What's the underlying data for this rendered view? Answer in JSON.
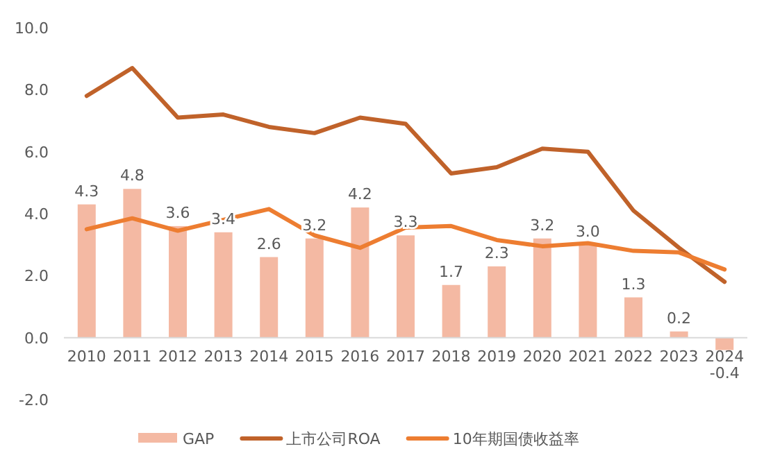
{
  "chart_data": {
    "type": "bar",
    "categories": [
      "2010",
      "2011",
      "2012",
      "2013",
      "2014",
      "2015",
      "2016",
      "2017",
      "2018",
      "2019",
      "2020",
      "2021",
      "2022",
      "2023",
      "2024"
    ],
    "series": [
      {
        "name": "GAP",
        "color": "#f4b9a3",
        "values": [
          4.3,
          4.8,
          3.6,
          3.4,
          2.6,
          3.2,
          4.2,
          3.3,
          1.7,
          2.3,
          3.2,
          3.0,
          1.3,
          0.2,
          -0.4
        ],
        "value_labels": [
          "4.3",
          "4.8",
          "3.6",
          "3.4",
          "2.6",
          "3.2",
          "4.2",
          "3.3",
          "1.7",
          "2.3",
          "3.2",
          "3.0",
          "1.3",
          "0.2",
          "-0.4"
        ]
      },
      {
        "name": "上市公司ROA",
        "type": "line",
        "color": "#c0622a",
        "values": [
          7.8,
          8.7,
          7.1,
          7.2,
          6.8,
          6.6,
          7.1,
          6.9,
          5.3,
          5.5,
          6.1,
          6.0,
          4.1,
          2.9,
          1.8
        ]
      },
      {
        "name": "10年期国债收益率",
        "type": "line",
        "color": "#ed7d31",
        "values": [
          3.5,
          3.85,
          3.45,
          3.8,
          4.15,
          3.3,
          2.9,
          3.55,
          3.6,
          3.15,
          2.95,
          3.05,
          2.8,
          2.75,
          2.2
        ]
      }
    ],
    "ylim": [
      -2,
      10
    ],
    "yticks": [
      {
        "value": -2,
        "label": "-2.0"
      },
      {
        "value": 0,
        "label": "0.0"
      },
      {
        "value": 2,
        "label": "2.0"
      },
      {
        "value": 4,
        "label": "4.0"
      },
      {
        "value": 6,
        "label": "6.0"
      },
      {
        "value": 8,
        "label": "8.0"
      },
      {
        "value": 10,
        "label": "10.0"
      }
    ],
    "legend": "bottom"
  }
}
